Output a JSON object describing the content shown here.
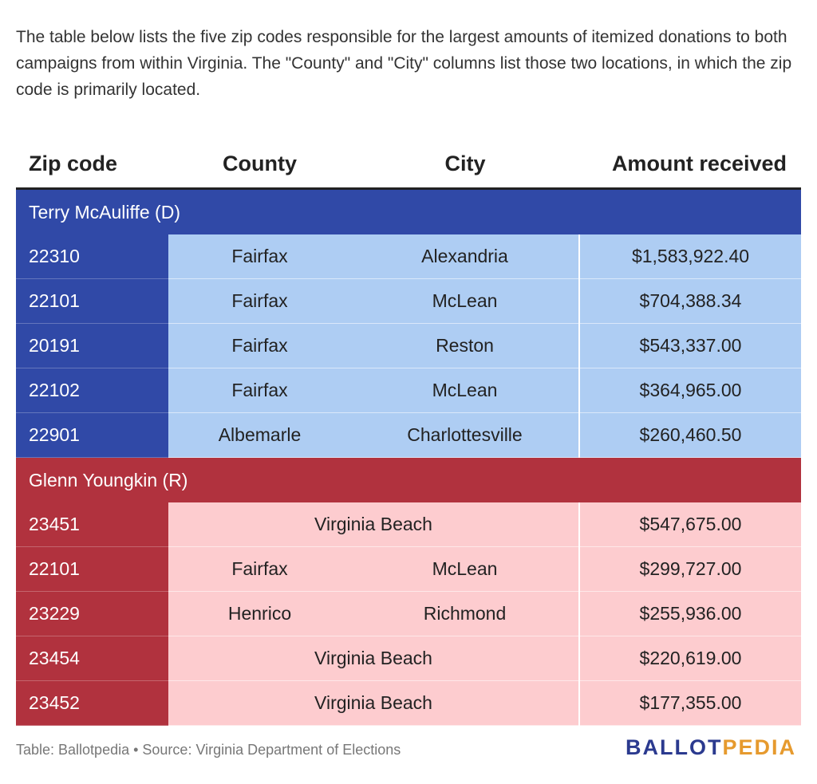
{
  "intro": "The table below lists the five zip codes responsible for the largest amounts of itemized donations to both campaigns from within Virginia. The \"County\" and \"City\" columns list those two locations, in which the zip code is primarily located.",
  "colors": {
    "dem": "#3049a7",
    "dem_light": "#aecdf3",
    "rep": "#b1323e",
    "rep_light": "#fdcccf",
    "logo_blue": "#2b3a8f",
    "logo_orange": "#e69a2e"
  },
  "chart_data": {
    "type": "table",
    "columns": [
      "Zip code",
      "County",
      "City",
      "Amount received"
    ],
    "groups": [
      {
        "name": "Terry McAuliffe (D)",
        "rows": [
          {
            "zip": "22310",
            "county": "Fairfax",
            "city": "Alexandria",
            "amount": "$1,583,922.40"
          },
          {
            "zip": "22101",
            "county": "Fairfax",
            "city": "McLean",
            "amount": "$704,388.34"
          },
          {
            "zip": "20191",
            "county": "Fairfax",
            "city": "Reston",
            "amount": "$543,337.00"
          },
          {
            "zip": "22102",
            "county": "Fairfax",
            "city": "McLean",
            "amount": "$364,965.00"
          },
          {
            "zip": "22901",
            "county": "Albemarle",
            "city": "Charlottesville",
            "amount": "$260,460.50"
          }
        ]
      },
      {
        "name": "Glenn Youngkin (R)",
        "rows": [
          {
            "zip": "23451",
            "merged": "Virginia Beach",
            "amount": "$547,675.00"
          },
          {
            "zip": "22101",
            "county": "Fairfax",
            "city": "McLean",
            "amount": "$299,727.00"
          },
          {
            "zip": "23229",
            "county": "Henrico",
            "city": "Richmond",
            "amount": "$255,936.00"
          },
          {
            "zip": "23454",
            "merged": "Virginia Beach",
            "amount": "$220,619.00"
          },
          {
            "zip": "23452",
            "merged": "Virginia Beach",
            "amount": "$177,355.00"
          }
        ]
      }
    ]
  },
  "footer": {
    "source": "Table: Ballotpedia • Source: Virginia Department of Elections",
    "logo_part1": "BALLOT",
    "logo_part2": "PEDIA"
  }
}
